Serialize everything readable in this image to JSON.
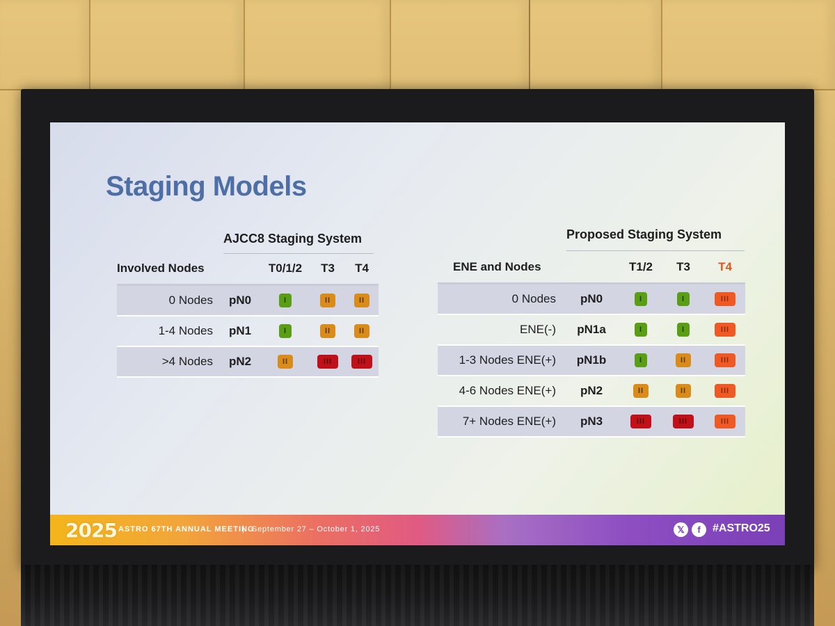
{
  "slide": {
    "title": "Staging Models",
    "ajcc": {
      "title": "AJCC8 Staging System",
      "headers": [
        "Involved Nodes",
        "",
        "T0/1/2",
        "T3",
        "T4"
      ],
      "rows": [
        {
          "nodes": "0 Nodes",
          "stage": "pN0",
          "grades": [
            "I",
            "II",
            "II"
          ]
        },
        {
          "nodes": "1-4 Nodes",
          "stage": "pN1",
          "grades": [
            "I",
            "II",
            "II"
          ]
        },
        {
          "nodes": ">4 Nodes",
          "stage": "pN2",
          "grades": [
            "II",
            "III",
            "III"
          ]
        }
      ]
    },
    "proposed": {
      "title": "Proposed Staging System",
      "headers": [
        "ENE and Nodes",
        "",
        "T1/2",
        "T3",
        "T4"
      ],
      "rows": [
        {
          "nodes": "0 Nodes",
          "stage": "pN0",
          "grades": [
            "I",
            "I",
            "III"
          ]
        },
        {
          "nodes": "ENE(-)",
          "stage": "pN1a",
          "grades": [
            "I",
            "I",
            "III"
          ]
        },
        {
          "nodes": "1-3 Nodes ENE(+)",
          "stage": "pN1b",
          "grades": [
            "I",
            "II",
            "III"
          ]
        },
        {
          "nodes": "4-6 Nodes ENE(+)",
          "stage": "pN2",
          "grades": [
            "II",
            "II",
            "III"
          ]
        },
        {
          "nodes": "7+ Nodes ENE(+)",
          "stage": "pN3",
          "grades": [
            "III",
            "III",
            "III"
          ]
        }
      ]
    },
    "footer": {
      "year": "2025",
      "meeting": "ASTRO 67TH ANNUAL MEETING",
      "separator": "|",
      "dates": "September 27 – October 1, 2025",
      "hashtag": "#ASTRO25",
      "x_icon": "x-logo-icon",
      "f_icon": "facebook-icon"
    }
  },
  "colors": {
    "grade_I": "#5a9e16",
    "grade_II": "#d98c19",
    "grade_III": "#c0111a",
    "grade_III_proposed": "#ef5a24",
    "title_blue": "#4e6fa6"
  }
}
